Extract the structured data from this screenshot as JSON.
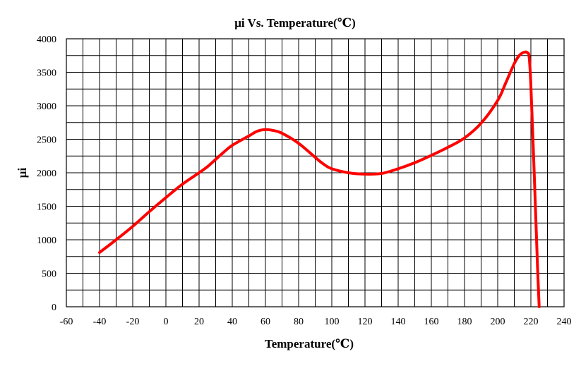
{
  "chart_data": {
    "type": "line",
    "title": "μi Vs. Temperature(℃)",
    "xlabel": "Temperature(℃)",
    "ylabel": "μi",
    "xlim": [
      -60,
      240
    ],
    "ylim": [
      0,
      4000
    ],
    "x_ticks": [
      -60,
      -40,
      -20,
      0,
      20,
      40,
      60,
      80,
      100,
      120,
      140,
      160,
      180,
      200,
      220,
      240
    ],
    "y_ticks": [
      0,
      500,
      1000,
      1500,
      2000,
      2500,
      3000,
      3500,
      4000
    ],
    "x_minor_step": 10,
    "y_minor_step": 250,
    "grid": true,
    "series": [
      {
        "color": "#ff0000",
        "x": [
          -40,
          -30,
          -20,
          -10,
          0,
          10,
          20,
          25,
          30,
          35,
          40,
          50,
          55,
          60,
          65,
          70,
          80,
          90,
          95,
          100,
          110,
          120,
          130,
          140,
          150,
          160,
          170,
          180,
          190,
          200,
          205,
          210,
          213,
          216,
          218,
          219,
          220,
          222,
          224,
          225
        ],
        "y": [
          810,
          1000,
          1200,
          1420,
          1630,
          1830,
          2000,
          2090,
          2200,
          2310,
          2410,
          2550,
          2620,
          2645,
          2630,
          2590,
          2440,
          2230,
          2130,
          2060,
          2000,
          1980,
          1990,
          2060,
          2150,
          2260,
          2380,
          2520,
          2740,
          3080,
          3350,
          3630,
          3750,
          3800,
          3790,
          3720,
          3300,
          2000,
          600,
          0
        ]
      }
    ]
  }
}
